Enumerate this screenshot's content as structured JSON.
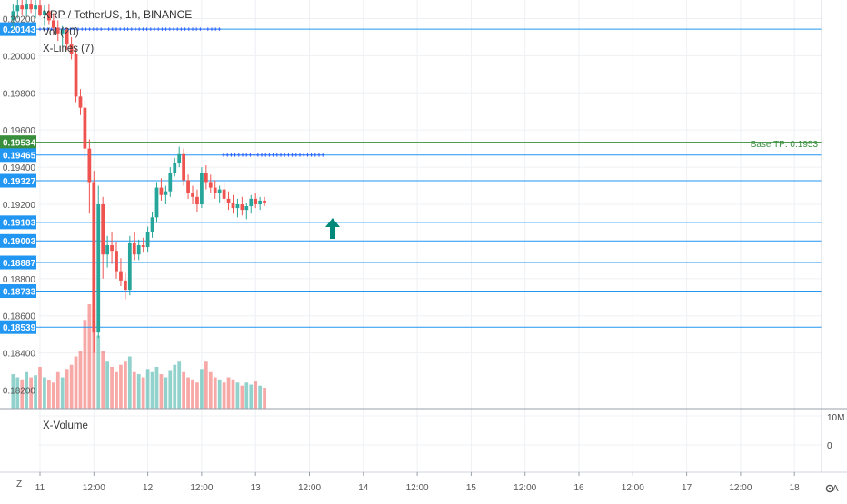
{
  "chart_data": {
    "type": "candlestick",
    "title": "XRP / TetherUS, 1h, BINANCE",
    "indicators": [
      "Vol (20)",
      "X-Lines (7)"
    ],
    "subpane_title": "X-Volume",
    "subpane_ticks": [
      "10M",
      "0"
    ],
    "x_ticks": [
      "11",
      "12:00",
      "12",
      "12:00",
      "13",
      "12:00",
      "14",
      "12:00",
      "15",
      "12:00",
      "16",
      "12:00",
      "17",
      "12:00",
      "18"
    ],
    "y_ticks": [
      "0.20200",
      "0.20000",
      "0.19800",
      "0.19600",
      "0.19400",
      "0.19200",
      "0.18800",
      "0.18600",
      "0.18400",
      "0.18200"
    ],
    "ylim": [
      0.181,
      0.203
    ],
    "level_lines": [
      {
        "label": "0.20143",
        "value": 0.20143,
        "color": "#2196f3"
      },
      {
        "label": "0.19534",
        "value": 0.19534,
        "color": "#388e3c"
      },
      {
        "label": "0.19465",
        "value": 0.19465,
        "color": "#2196f3"
      },
      {
        "label": "0.19327",
        "value": 0.19327,
        "color": "#2196f3"
      },
      {
        "label": "0.19103",
        "value": 0.19103,
        "color": "#2196f3"
      },
      {
        "label": "0.19003",
        "value": 0.19003,
        "color": "#2196f3"
      },
      {
        "label": "0.18887",
        "value": 0.18887,
        "color": "#2196f3"
      },
      {
        "label": "0.18733",
        "value": 0.18733,
        "color": "#2196f3"
      },
      {
        "label": "0.18539",
        "value": 0.18539,
        "color": "#2196f3"
      }
    ],
    "annotation": "Base TP: 0.1953",
    "colors": {
      "up": "#26a69a",
      "down": "#ef5350",
      "level": "#2196f3",
      "tp": "#388e3c",
      "arrow": "#00897b"
    },
    "candles": [
      {
        "o": 0.2019,
        "h": 0.2028,
        "l": 0.2014,
        "c": 0.2024
      },
      {
        "o": 0.2024,
        "h": 0.203,
        "l": 0.202,
        "c": 0.2027
      },
      {
        "o": 0.2027,
        "h": 0.2032,
        "l": 0.2022,
        "c": 0.2025
      },
      {
        "o": 0.2025,
        "h": 0.2031,
        "l": 0.2021,
        "c": 0.2028
      },
      {
        "o": 0.2028,
        "h": 0.2032,
        "l": 0.2023,
        "c": 0.2025
      },
      {
        "o": 0.2025,
        "h": 0.203,
        "l": 0.202,
        "c": 0.2027
      },
      {
        "o": 0.2027,
        "h": 0.2031,
        "l": 0.2021,
        "c": 0.2022
      },
      {
        "o": 0.2022,
        "h": 0.2027,
        "l": 0.2016,
        "c": 0.2024
      },
      {
        "o": 0.2024,
        "h": 0.2028,
        "l": 0.2017,
        "c": 0.2019
      },
      {
        "o": 0.2019,
        "h": 0.2023,
        "l": 0.2012,
        "c": 0.2015
      },
      {
        "o": 0.2015,
        "h": 0.2019,
        "l": 0.2008,
        "c": 0.2012
      },
      {
        "o": 0.2012,
        "h": 0.2016,
        "l": 0.2005,
        "c": 0.2014
      },
      {
        "o": 0.2014,
        "h": 0.2015,
        "l": 0.2003,
        "c": 0.2006
      },
      {
        "o": 0.2006,
        "h": 0.201,
        "l": 0.1998,
        "c": 0.2001
      },
      {
        "o": 0.2001,
        "h": 0.2004,
        "l": 0.1975,
        "c": 0.1978
      },
      {
        "o": 0.1978,
        "h": 0.1982,
        "l": 0.1968,
        "c": 0.1972
      },
      {
        "o": 0.1972,
        "h": 0.1976,
        "l": 0.1945,
        "c": 0.195
      },
      {
        "o": 0.195,
        "h": 0.1955,
        "l": 0.1915,
        "c": 0.1932
      },
      {
        "o": 0.1932,
        "h": 0.1938,
        "l": 0.184,
        "c": 0.1851
      },
      {
        "o": 0.1851,
        "h": 0.193,
        "l": 0.1848,
        "c": 0.192
      },
      {
        "o": 0.192,
        "h": 0.1924,
        "l": 0.188,
        "c": 0.1893
      },
      {
        "o": 0.1893,
        "h": 0.1903,
        "l": 0.1886,
        "c": 0.1898
      },
      {
        "o": 0.1898,
        "h": 0.1905,
        "l": 0.1888,
        "c": 0.1895
      },
      {
        "o": 0.1895,
        "h": 0.19,
        "l": 0.188,
        "c": 0.1884
      },
      {
        "o": 0.1884,
        "h": 0.1891,
        "l": 0.1876,
        "c": 0.1879
      },
      {
        "o": 0.1879,
        "h": 0.1883,
        "l": 0.1869,
        "c": 0.1874
      },
      {
        "o": 0.1874,
        "h": 0.1903,
        "l": 0.1871,
        "c": 0.1899
      },
      {
        "o": 0.1899,
        "h": 0.1905,
        "l": 0.189,
        "c": 0.1893
      },
      {
        "o": 0.1893,
        "h": 0.1901,
        "l": 0.189,
        "c": 0.1898
      },
      {
        "o": 0.1898,
        "h": 0.1902,
        "l": 0.1894,
        "c": 0.1897
      },
      {
        "o": 0.1897,
        "h": 0.1908,
        "l": 0.1894,
        "c": 0.1905
      },
      {
        "o": 0.1905,
        "h": 0.1916,
        "l": 0.1902,
        "c": 0.1913
      },
      {
        "o": 0.1913,
        "h": 0.1932,
        "l": 0.191,
        "c": 0.1929
      },
      {
        "o": 0.1929,
        "h": 0.1934,
        "l": 0.1922,
        "c": 0.1925
      },
      {
        "o": 0.1925,
        "h": 0.193,
        "l": 0.192,
        "c": 0.1927
      },
      {
        "o": 0.1927,
        "h": 0.194,
        "l": 0.1924,
        "c": 0.1937
      },
      {
        "o": 0.1937,
        "h": 0.1945,
        "l": 0.1935,
        "c": 0.1942
      },
      {
        "o": 0.1942,
        "h": 0.1951,
        "l": 0.194,
        "c": 0.1947
      },
      {
        "o": 0.1947,
        "h": 0.195,
        "l": 0.193,
        "c": 0.1933
      },
      {
        "o": 0.1933,
        "h": 0.1936,
        "l": 0.1923,
        "c": 0.1926
      },
      {
        "o": 0.1926,
        "h": 0.193,
        "l": 0.192,
        "c": 0.1924
      },
      {
        "o": 0.1924,
        "h": 0.1928,
        "l": 0.1916,
        "c": 0.192
      },
      {
        "o": 0.192,
        "h": 0.194,
        "l": 0.1918,
        "c": 0.1937
      },
      {
        "o": 0.1937,
        "h": 0.1941,
        "l": 0.1928,
        "c": 0.1932
      },
      {
        "o": 0.1932,
        "h": 0.1936,
        "l": 0.1926,
        "c": 0.1929
      },
      {
        "o": 0.1929,
        "h": 0.1933,
        "l": 0.1923,
        "c": 0.1926
      },
      {
        "o": 0.1926,
        "h": 0.193,
        "l": 0.1921,
        "c": 0.1928
      },
      {
        "o": 0.1928,
        "h": 0.1932,
        "l": 0.192,
        "c": 0.1923
      },
      {
        "o": 0.1923,
        "h": 0.1927,
        "l": 0.1917,
        "c": 0.1921
      },
      {
        "o": 0.1921,
        "h": 0.1925,
        "l": 0.1915,
        "c": 0.1918
      },
      {
        "o": 0.1918,
        "h": 0.1923,
        "l": 0.1913,
        "c": 0.192
      },
      {
        "o": 0.192,
        "h": 0.1924,
        "l": 0.1914,
        "c": 0.1917
      },
      {
        "o": 0.1917,
        "h": 0.1921,
        "l": 0.1912,
        "c": 0.1919
      },
      {
        "o": 0.1919,
        "h": 0.1925,
        "l": 0.1915,
        "c": 0.1923
      },
      {
        "o": 0.1923,
        "h": 0.1926,
        "l": 0.1918,
        "c": 0.192
      },
      {
        "o": 0.192,
        "h": 0.1924,
        "l": 0.1917,
        "c": 0.1922
      },
      {
        "o": 0.1922,
        "h": 0.1924,
        "l": 0.1919,
        "c": 0.1921
      }
    ],
    "volume": [
      0.33,
      0.3,
      0.28,
      0.35,
      0.3,
      0.32,
      0.4,
      0.3,
      0.27,
      0.25,
      0.35,
      0.3,
      0.38,
      0.42,
      0.5,
      0.55,
      0.85,
      1.0,
      0.95,
      0.7,
      0.55,
      0.45,
      0.4,
      0.35,
      0.42,
      0.45,
      0.5,
      0.35,
      0.33,
      0.3,
      0.38,
      0.35,
      0.4,
      0.33,
      0.3,
      0.37,
      0.42,
      0.45,
      0.35,
      0.3,
      0.28,
      0.25,
      0.38,
      0.45,
      0.35,
      0.3,
      0.28,
      0.25,
      0.3,
      0.28,
      0.25,
      0.22,
      0.25,
      0.23,
      0.26,
      0.22,
      0.2
    ]
  }
}
